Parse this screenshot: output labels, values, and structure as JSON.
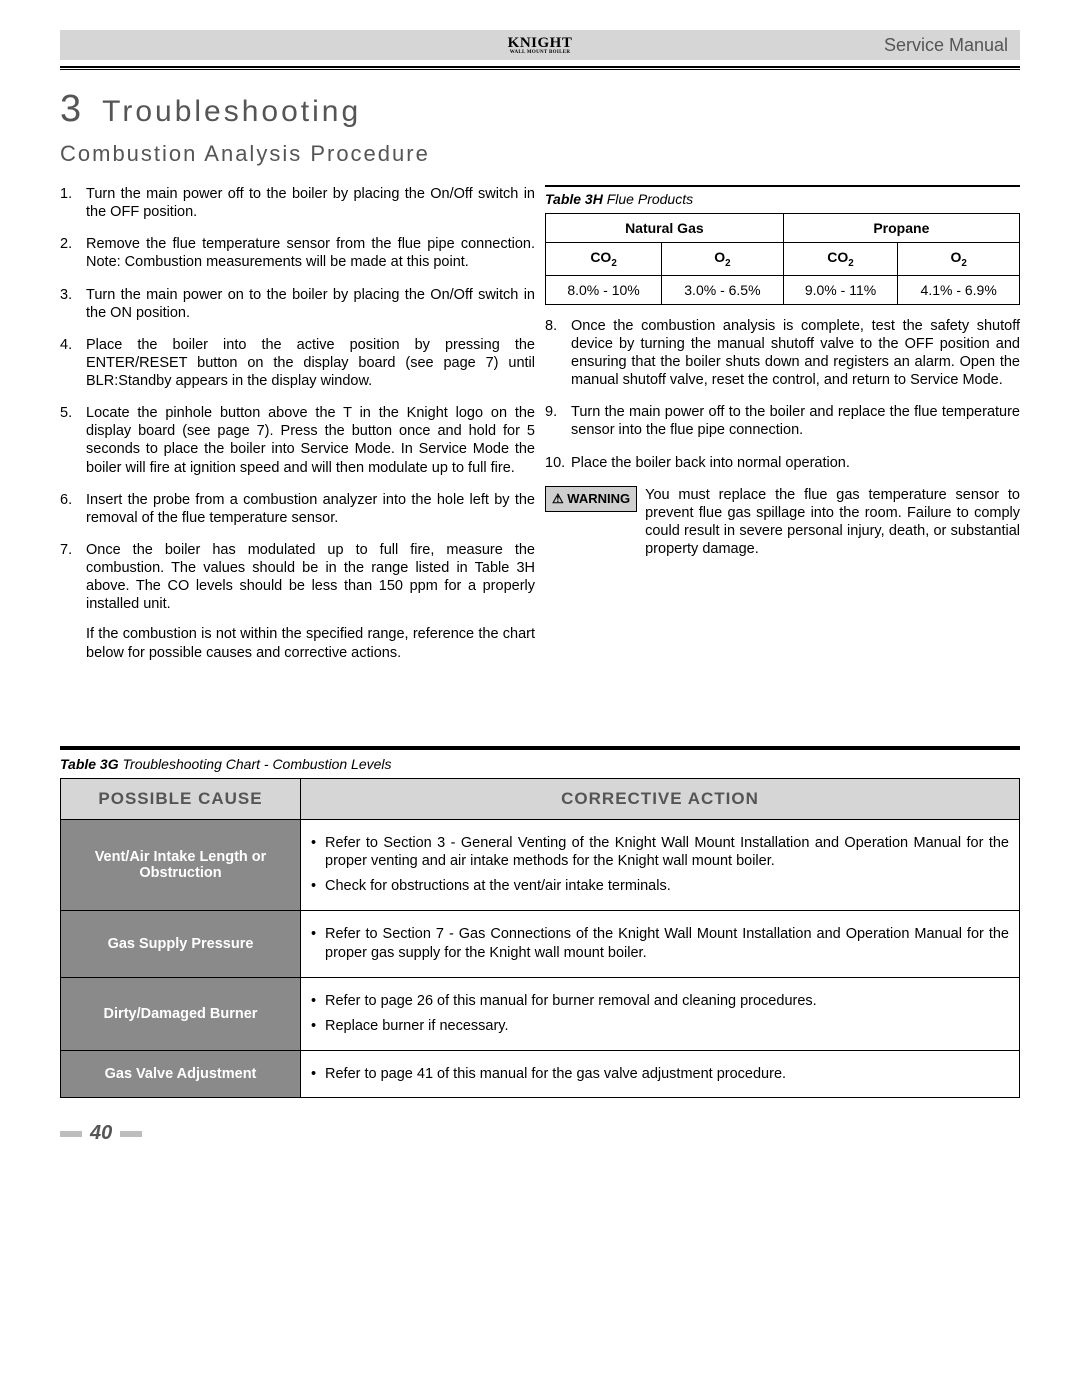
{
  "header": {
    "logo_main": "KNIGHT",
    "logo_sub": "WALL MOUNT BOILER",
    "right": "Service Manual"
  },
  "section": {
    "number": "3",
    "title": "Troubleshooting",
    "subsection": "Combustion Analysis Procedure"
  },
  "steps_left": [
    {
      "n": "1.",
      "t": "Turn the main power off to the boiler by placing the On/Off switch in the OFF position."
    },
    {
      "n": "2.",
      "t": "Remove the flue temperature sensor from the flue pipe connection. Note: Combustion measurements will be made at this point."
    },
    {
      "n": "3.",
      "t": "Turn the main power on to the boiler by placing the On/Off switch in the ON position."
    },
    {
      "n": "4.",
      "t": "Place the boiler into the active position by pressing the ENTER/RESET button on the display board (see page 7) until BLR:Standby appears in the display window."
    },
    {
      "n": "5.",
      "t": "Locate the pinhole button above the T in the Knight logo on the display board (see page 7). Press the button once and hold for 5 seconds to place the boiler into Service Mode. In Service Mode the boiler will fire at ignition speed and will then modulate up to full fire."
    },
    {
      "n": "6.",
      "t": "Insert the probe from a combustion analyzer into the hole left by the removal of the flue temperature sensor."
    },
    {
      "n": "7.",
      "t": "Once the boiler has modulated up to full fire, measure the combustion. The values should be in the range listed in Table 3H above. The CO levels should be less than 150 ppm for a properly installed unit.",
      "sub": "If the combustion is not within the specified range, reference the chart below for possible causes and corrective actions."
    }
  ],
  "table3h": {
    "caption_bold": "Table 3H",
    "caption_rest": "Flue Products",
    "col_group1": "Natural Gas",
    "col_group2": "Propane",
    "sub_co2": "CO",
    "sub_o2": "O",
    "row": [
      "8.0% - 10%",
      "3.0% - 6.5%",
      "9.0% - 11%",
      "4.1% - 6.9%"
    ]
  },
  "steps_right": [
    {
      "n": "8.",
      "t": "Once the combustion analysis is complete, test the safety shutoff device by turning the manual shutoff valve to the OFF position and ensuring that the boiler shuts down and registers an alarm. Open the manual shutoff valve, reset the control, and return to Service Mode."
    },
    {
      "n": "9.",
      "t": "Turn the main power off to the boiler and replace the flue temperature sensor into the flue pipe connection."
    },
    {
      "n": "10.",
      "t": "Place the boiler back into normal operation."
    }
  ],
  "warning": {
    "label": "⚠ WARNING",
    "text": "You must replace the flue gas temperature sensor to prevent flue gas spillage into the room. Failure to comply could result in severe personal injury, death, or substantial property damage."
  },
  "table3g": {
    "caption_bold": "Table 3G",
    "caption_rest": "Troubleshooting Chart - Combustion Levels",
    "head_cause": "POSSIBLE CAUSE",
    "head_action": "CORRECTIVE ACTION",
    "rows": [
      {
        "cause": "Vent/Air Intake Length or Obstruction",
        "actions": [
          "Refer to Section 3 - General Venting of the Knight Wall Mount Installation and Operation Manual for the proper venting and air intake methods for the Knight wall mount boiler.",
          "Check for obstructions at the vent/air intake terminals."
        ]
      },
      {
        "cause": "Gas Supply Pressure",
        "actions": [
          "Refer to Section 7 - Gas Connections of the Knight Wall Mount Installation and Operation Manual for the proper gas supply for the Knight wall mount boiler."
        ]
      },
      {
        "cause": "Dirty/Damaged Burner",
        "actions": [
          "Refer to page 26 of this manual for burner removal and cleaning procedures.",
          "Replace burner if necessary."
        ]
      },
      {
        "cause": "Gas Valve Adjustment",
        "actions": [
          "Refer to page 41 of this manual for the gas valve adjustment procedure."
        ]
      }
    ]
  },
  "page_number": "40"
}
